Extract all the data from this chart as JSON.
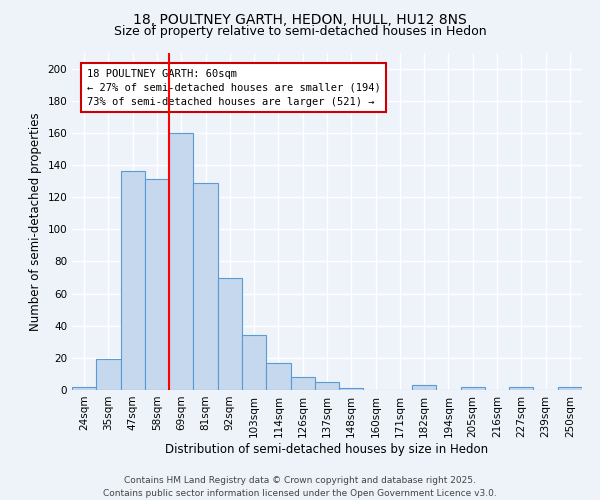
{
  "title1": "18, POULTNEY GARTH, HEDON, HULL, HU12 8NS",
  "title2": "Size of property relative to semi-detached houses in Hedon",
  "xlabel": "Distribution of semi-detached houses by size in Hedon",
  "ylabel": "Number of semi-detached properties",
  "categories": [
    "24sqm",
    "35sqm",
    "47sqm",
    "58sqm",
    "69sqm",
    "81sqm",
    "92sqm",
    "103sqm",
    "114sqm",
    "126sqm",
    "137sqm",
    "148sqm",
    "160sqm",
    "171sqm",
    "182sqm",
    "194sqm",
    "205sqm",
    "216sqm",
    "227sqm",
    "239sqm",
    "250sqm"
  ],
  "values": [
    2,
    19,
    136,
    131,
    160,
    129,
    70,
    34,
    17,
    8,
    5,
    1,
    0,
    0,
    3,
    0,
    2,
    0,
    2,
    0,
    2
  ],
  "bar_color": "#c5d8ed",
  "bar_edge_color": "#5b9bd5",
  "annotation_text": "18 POULTNEY GARTH: 60sqm\n← 27% of semi-detached houses are smaller (194)\n73% of semi-detached houses are larger (521) →",
  "annotation_box_color": "#ffffff",
  "annotation_box_edge_color": "#cc0000",
  "ylim": [
    0,
    210
  ],
  "yticks": [
    0,
    20,
    40,
    60,
    80,
    100,
    120,
    140,
    160,
    180,
    200
  ],
  "footer": "Contains HM Land Registry data © Crown copyright and database right 2025.\nContains public sector information licensed under the Open Government Licence v3.0.",
  "bg_color": "#eef2f9",
  "grid_color": "#ffffff",
  "title1_fontsize": 10,
  "title2_fontsize": 9,
  "axis_label_fontsize": 8.5,
  "tick_fontsize": 7.5,
  "annotation_fontsize": 7.5,
  "footer_fontsize": 6.5
}
